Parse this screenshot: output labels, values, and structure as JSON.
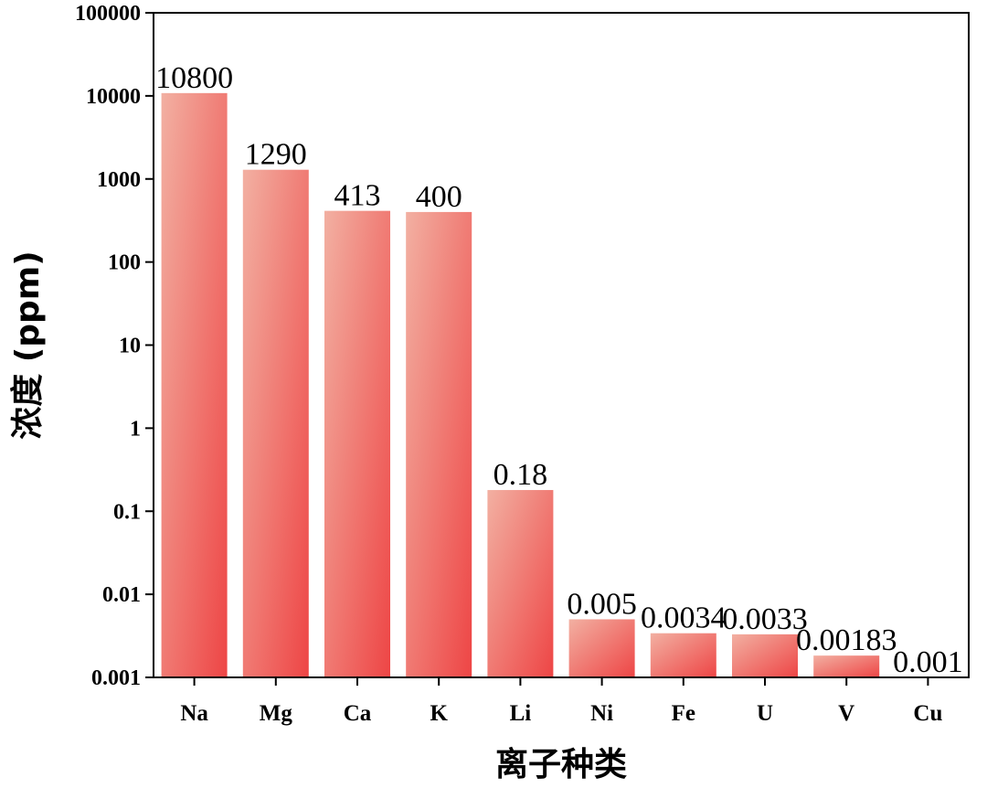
{
  "chart_data": {
    "type": "bar",
    "yscale": "log",
    "categories": [
      "Na",
      "Mg",
      "Ca",
      "K",
      "Li",
      "Ni",
      "Fe",
      "U",
      "V",
      "Cu"
    ],
    "values": [
      10800,
      1290,
      413,
      400,
      0.18,
      0.005,
      0.0034,
      0.0033,
      0.00183,
      0.001
    ],
    "value_labels": [
      "10800",
      "1290",
      "413",
      "400",
      "0.18",
      "0.005",
      "0.0034",
      "0.0033",
      "0.00183",
      "0.001"
    ],
    "ylim": [
      0.001,
      100000
    ],
    "yticks": [
      0.001,
      0.01,
      0.1,
      1,
      10,
      100,
      1000,
      10000,
      100000
    ],
    "ytick_labels": [
      "0.001",
      "0.01",
      "0.1",
      "1",
      "10",
      "100",
      "1000",
      "10000",
      "100000"
    ],
    "xlabel": "离子种类",
    "ylabel": "浓度 (ppm)",
    "grid": false,
    "legend": "none",
    "bar_gradient": {
      "light": "#f2b0a2",
      "dark": "#ee4545"
    }
  }
}
